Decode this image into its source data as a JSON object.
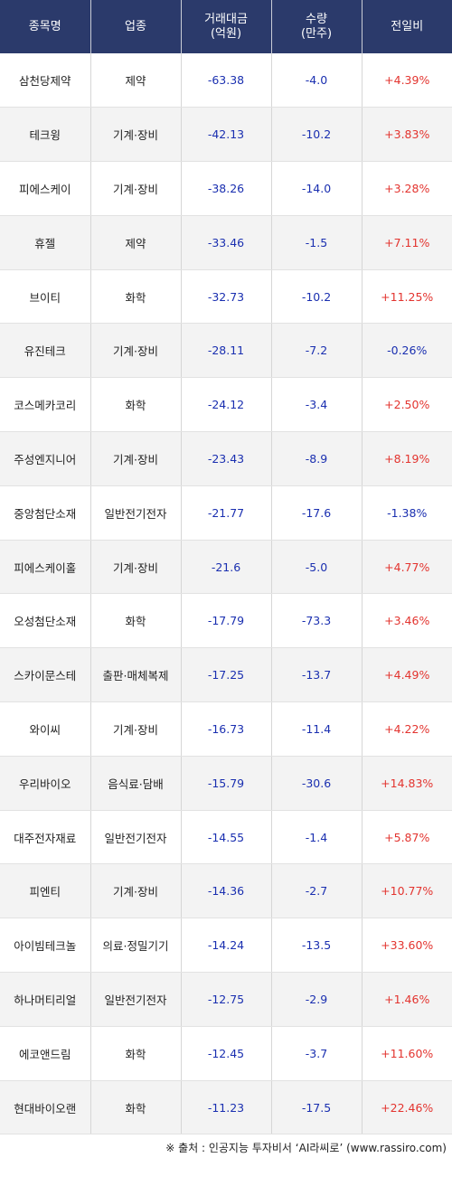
{
  "header": {
    "name": "종목명",
    "sector": "업종",
    "amount_l1": "거래대금",
    "amount_l2": "(억원)",
    "volume_l1": "수량",
    "volume_l2": "(만주)",
    "change": "전일비"
  },
  "rows": [
    {
      "name": "삼천당제약",
      "sector": "제약",
      "amount": "-63.38",
      "volume": "-4.0",
      "change": "+4.39%",
      "dir": "up"
    },
    {
      "name": "테크윙",
      "sector": "기계·장비",
      "amount": "-42.13",
      "volume": "-10.2",
      "change": "+3.83%",
      "dir": "up"
    },
    {
      "name": "피에스케이",
      "sector": "기계·장비",
      "amount": "-38.26",
      "volume": "-14.0",
      "change": "+3.28%",
      "dir": "up"
    },
    {
      "name": "휴젤",
      "sector": "제약",
      "amount": "-33.46",
      "volume": "-1.5",
      "change": "+7.11%",
      "dir": "up"
    },
    {
      "name": "브이티",
      "sector": "화학",
      "amount": "-32.73",
      "volume": "-10.2",
      "change": "+11.25%",
      "dir": "up"
    },
    {
      "name": "유진테크",
      "sector": "기계·장비",
      "amount": "-28.11",
      "volume": "-7.2",
      "change": "-0.26%",
      "dir": "down"
    },
    {
      "name": "코스메카코리",
      "sector": "화학",
      "amount": "-24.12",
      "volume": "-3.4",
      "change": "+2.50%",
      "dir": "up"
    },
    {
      "name": "주성엔지니어",
      "sector": "기계·장비",
      "amount": "-23.43",
      "volume": "-8.9",
      "change": "+8.19%",
      "dir": "up"
    },
    {
      "name": "중앙첨단소재",
      "sector": "일반전기전자",
      "amount": "-21.77",
      "volume": "-17.6",
      "change": "-1.38%",
      "dir": "down"
    },
    {
      "name": "피에스케이홀",
      "sector": "기계·장비",
      "amount": "-21.6",
      "volume": "-5.0",
      "change": "+4.77%",
      "dir": "up"
    },
    {
      "name": "오성첨단소재",
      "sector": "화학",
      "amount": "-17.79",
      "volume": "-73.3",
      "change": "+3.46%",
      "dir": "up"
    },
    {
      "name": "스카이문스테",
      "sector": "출판·매체복제",
      "amount": "-17.25",
      "volume": "-13.7",
      "change": "+4.49%",
      "dir": "up"
    },
    {
      "name": "와이씨",
      "sector": "기계·장비",
      "amount": "-16.73",
      "volume": "-11.4",
      "change": "+4.22%",
      "dir": "up"
    },
    {
      "name": "우리바이오",
      "sector": "음식료·담배",
      "amount": "-15.79",
      "volume": "-30.6",
      "change": "+14.83%",
      "dir": "up"
    },
    {
      "name": "대주전자재료",
      "sector": "일반전기전자",
      "amount": "-14.55",
      "volume": "-1.4",
      "change": "+5.87%",
      "dir": "up"
    },
    {
      "name": "피엔티",
      "sector": "기계·장비",
      "amount": "-14.36",
      "volume": "-2.7",
      "change": "+10.77%",
      "dir": "up"
    },
    {
      "name": "아이빔테크놀",
      "sector": "의료·정밀기기",
      "amount": "-14.24",
      "volume": "-13.5",
      "change": "+33.60%",
      "dir": "up"
    },
    {
      "name": "하나머티리얼",
      "sector": "일반전기전자",
      "amount": "-12.75",
      "volume": "-2.9",
      "change": "+1.46%",
      "dir": "up"
    },
    {
      "name": "에코앤드림",
      "sector": "화학",
      "amount": "-12.45",
      "volume": "-3.7",
      "change": "+11.60%",
      "dir": "up"
    },
    {
      "name": "현대바이오랜",
      "sector": "화학",
      "amount": "-11.23",
      "volume": "-17.5",
      "change": "+22.46%",
      "dir": "up"
    }
  ],
  "footer": {
    "source": "※ 출처 : 인공지능 투자비서 ‘AI라씨로’ (www.rassiro.com)"
  },
  "colors": {
    "header_bg": "#2b3a6b",
    "up": "#e3342f",
    "down": "#1a2fb0"
  }
}
